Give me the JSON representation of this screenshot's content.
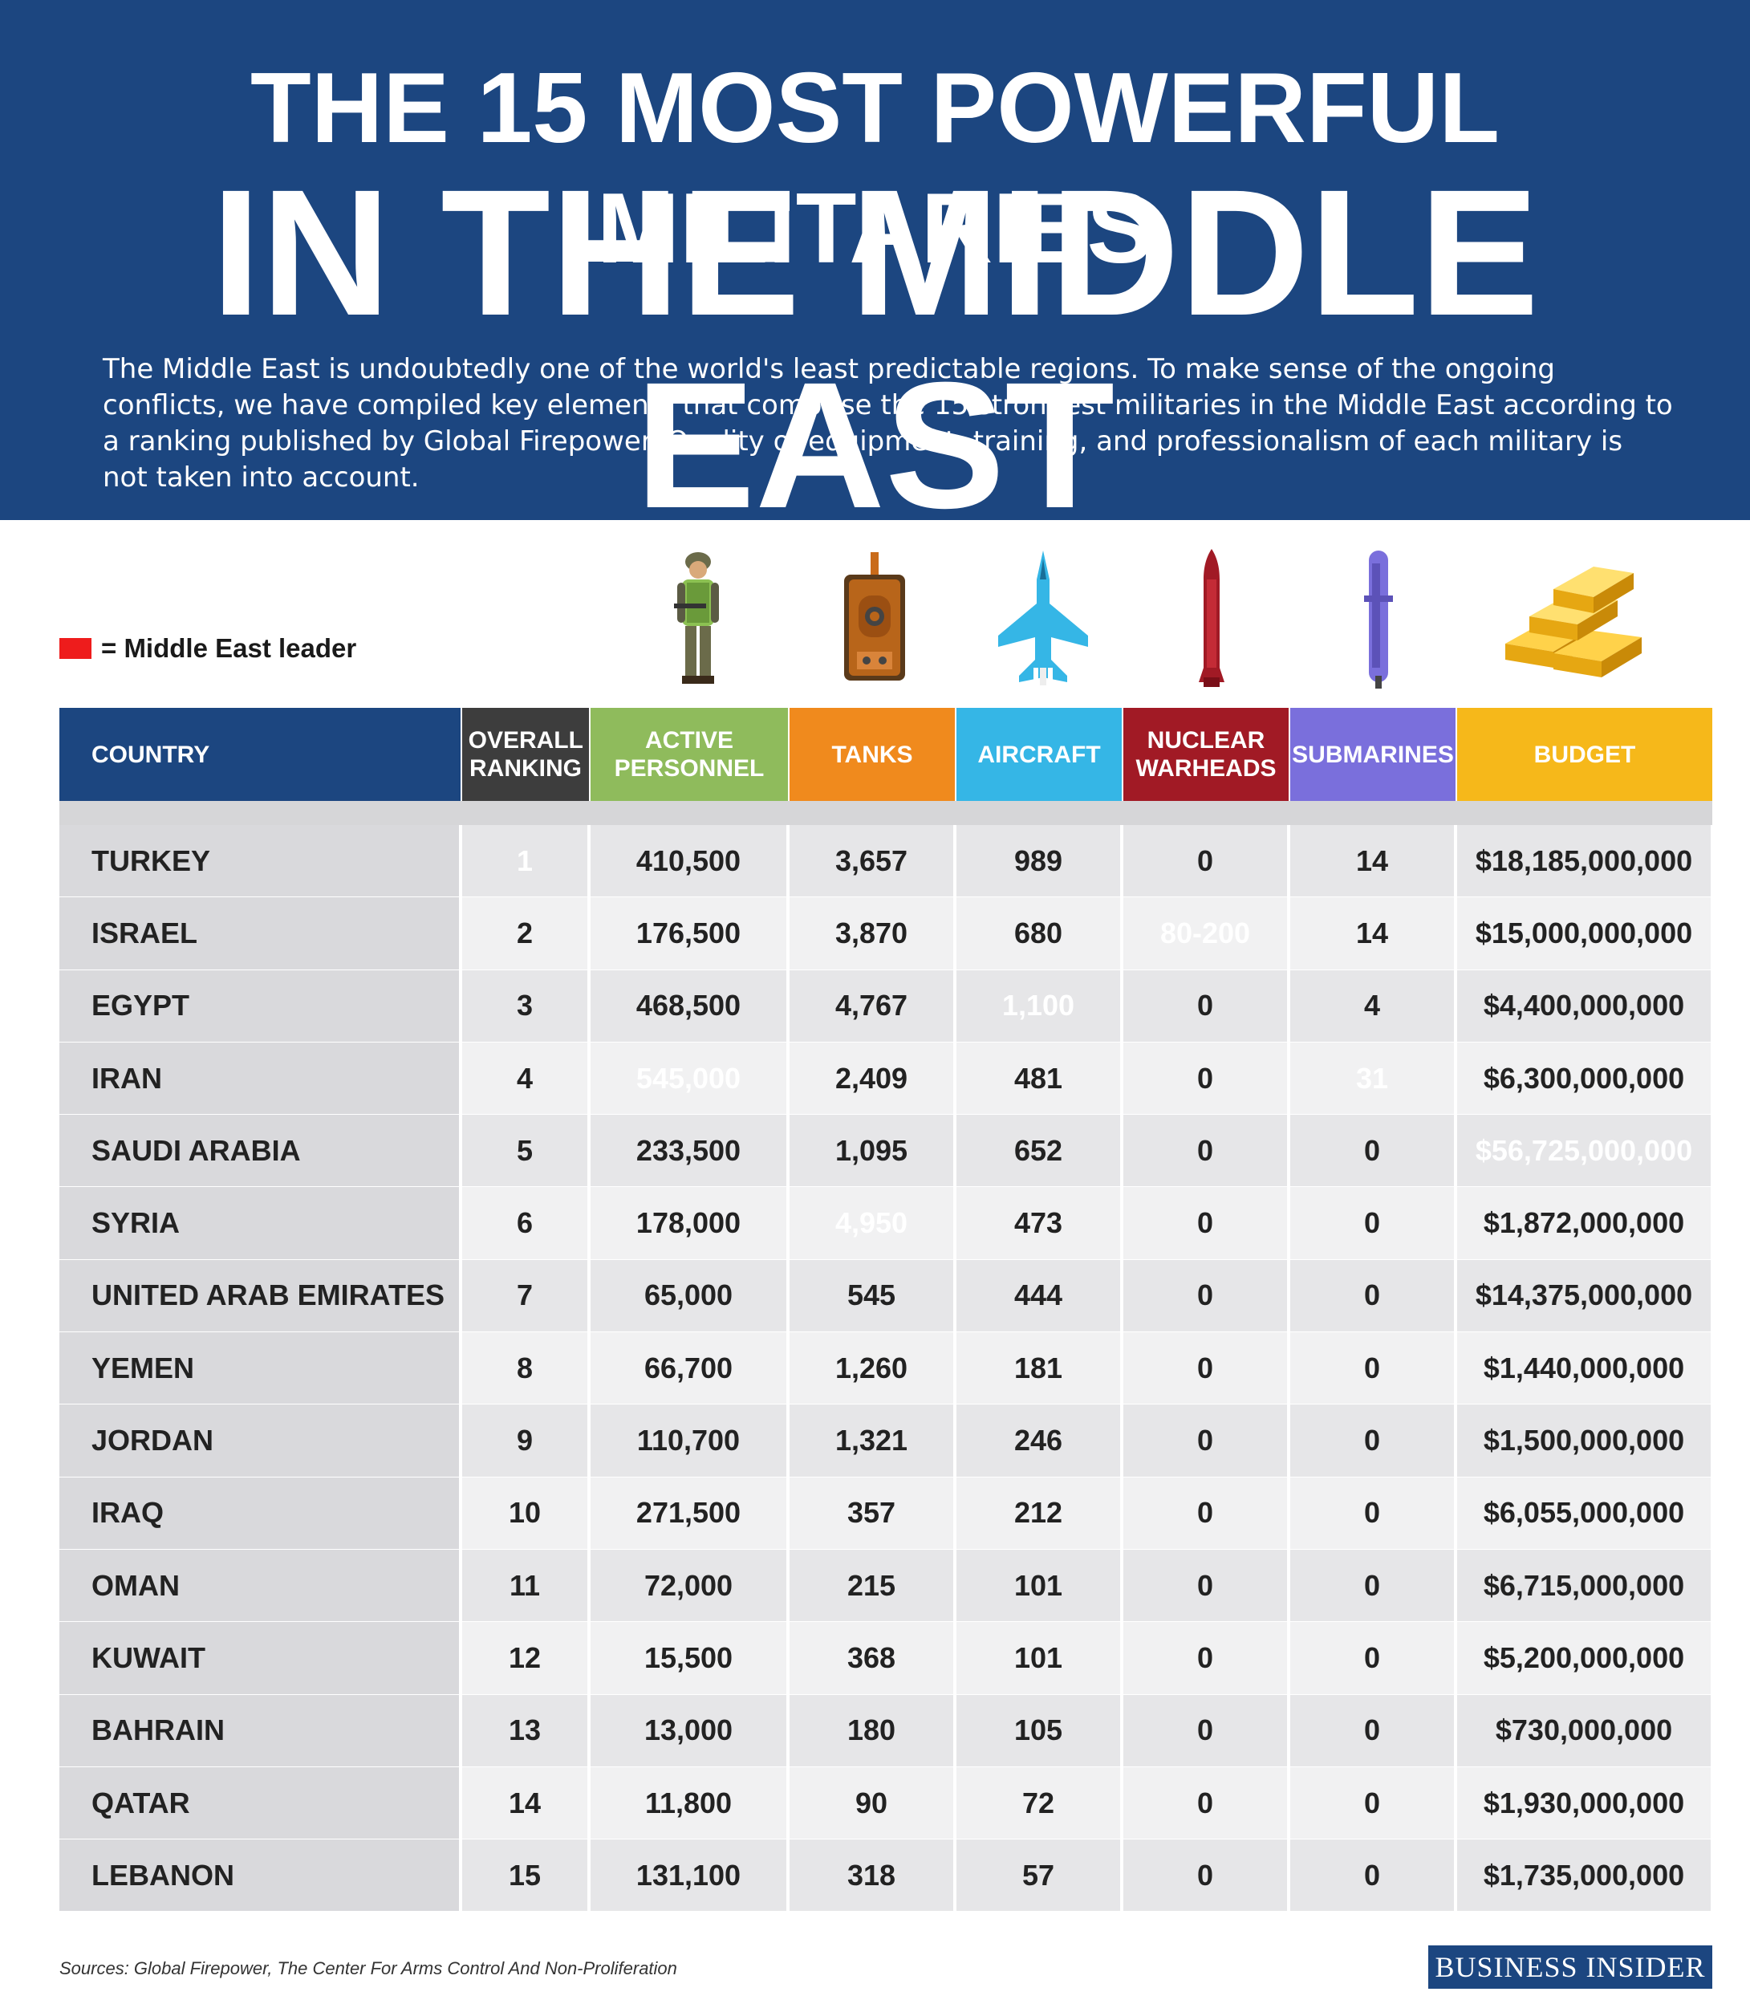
{
  "header": {
    "title_line1": "THE 15 MOST POWERFUL MILITARIES",
    "title_line2": "IN THE MIDDLE EAST",
    "intro": "The Middle East is undoubtedly one of the world's least predictable regions. To make sense of the ongoing conflicts, we have compiled key elements that comprise the 15 strongest militaries in the Middle East according to a ranking published by Global Firepower. Quality of equipment, training, and professionalism of each military is not taken into account."
  },
  "legend": {
    "text": "= Middle East leader",
    "color": "#ee1c1c"
  },
  "icons": [
    "soldier-icon",
    "tank-icon",
    "fighter-jet-icon",
    "nuclear-missile-icon",
    "submarine-icon",
    "gold-bars-icon"
  ],
  "colors": {
    "country_header": "#1c4680",
    "ranking_header": "#3d3d3d",
    "personnel_header": "#8fbb5c",
    "tanks_header": "#f08a1d",
    "aircraft_header": "#35b6e6",
    "nuclear_header": "#a11a25",
    "submarines_header": "#7a6fdc",
    "budget_header": "#f6b81a",
    "leader": "#ee1c1c"
  },
  "chart_data": {
    "type": "table",
    "columns": [
      "COUNTRY",
      "OVERALL RANKING",
      "ACTIVE PERSONNEL",
      "TANKS",
      "AIRCRAFT",
      "NUCLEAR WARHEADS",
      "SUBMARINES",
      "BUDGET"
    ],
    "rows": [
      [
        "TURKEY",
        "1",
        "410,500",
        "3,657",
        "989",
        "0",
        "14",
        "$18,185,000,000"
      ],
      [
        "ISRAEL",
        "2",
        "176,500",
        "3,870",
        "680",
        "80-200",
        "14",
        "$15,000,000,000"
      ],
      [
        "EGYPT",
        "3",
        "468,500",
        "4,767",
        "1,100",
        "0",
        "4",
        "$4,400,000,000"
      ],
      [
        "IRAN",
        "4",
        "545,000",
        "2,409",
        "481",
        "0",
        "31",
        "$6,300,000,000"
      ],
      [
        "SAUDI ARABIA",
        "5",
        "233,500",
        "1,095",
        "652",
        "0",
        "0",
        "$56,725,000,000"
      ],
      [
        "SYRIA",
        "6",
        "178,000",
        "4,950",
        "473",
        "0",
        "0",
        "$1,872,000,000"
      ],
      [
        "UNITED ARAB EMIRATES",
        "7",
        "65,000",
        "545",
        "444",
        "0",
        "0",
        "$14,375,000,000"
      ],
      [
        "YEMEN",
        "8",
        "66,700",
        "1,260",
        "181",
        "0",
        "0",
        "$1,440,000,000"
      ],
      [
        "JORDAN",
        "9",
        "110,700",
        "1,321",
        "246",
        "0",
        "0",
        "$1,500,000,000"
      ],
      [
        "IRAQ",
        "10",
        "271,500",
        "357",
        "212",
        "0",
        "0",
        "$6,055,000,000"
      ],
      [
        "OMAN",
        "11",
        "72,000",
        "215",
        "101",
        "0",
        "0",
        "$6,715,000,000"
      ],
      [
        "KUWAIT",
        "12",
        "15,500",
        "368",
        "101",
        "0",
        "0",
        "$5,200,000,000"
      ],
      [
        "BAHRAIN",
        "13",
        "13,000",
        "180",
        "105",
        "0",
        "0",
        "$730,000,000"
      ],
      [
        "QATAR",
        "14",
        "11,800",
        "90",
        "72",
        "0",
        "0",
        "$1,930,000,000"
      ],
      [
        "LEBANON",
        "15",
        "131,100",
        "318",
        "57",
        "0",
        "0",
        "$1,735,000,000"
      ]
    ],
    "leaders": [
      [
        0,
        1
      ],
      [
        1,
        5
      ],
      [
        2,
        4
      ],
      [
        3,
        2
      ],
      [
        3,
        6
      ],
      [
        4,
        7
      ],
      [
        5,
        3
      ]
    ]
  },
  "footer": {
    "sources": "Sources: Global Firepower, The Center For Arms Control And Non-Proliferation",
    "logo": "BUSINESS INSIDER"
  }
}
